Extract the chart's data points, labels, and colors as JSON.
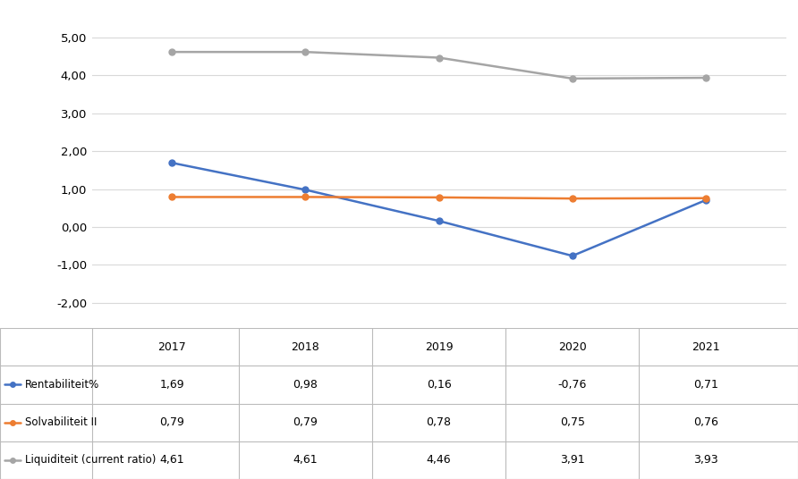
{
  "years": [
    2017,
    2018,
    2019,
    2020,
    2021
  ],
  "rentabiliteit": [
    1.69,
    0.98,
    0.16,
    -0.76,
    0.71
  ],
  "solvabiliteit": [
    0.79,
    0.79,
    0.78,
    0.75,
    0.76
  ],
  "liquiditeit": [
    4.61,
    4.61,
    4.46,
    3.91,
    3.93
  ],
  "color_rentabiliteit": "#4472C4",
  "color_solvabiliteit": "#ED7D31",
  "color_liquiditeit": "#A5A5A5",
  "ylim": [
    -2.6,
    5.6
  ],
  "yticks": [
    -2.0,
    -1.0,
    0.0,
    1.0,
    2.0,
    3.0,
    4.0,
    5.0
  ],
  "table_rows": [
    [
      "Rentabiliteit%",
      "1,69",
      "0,98",
      "0,16",
      "-0,76",
      "0,71"
    ],
    [
      "Solvabiliteit II",
      "0,79",
      "0,79",
      "0,78",
      "0,75",
      "0,76"
    ],
    [
      "Liquiditeit (current ratio)",
      "4,61",
      "4,61",
      "4,46",
      "3,91",
      "3,93"
    ]
  ],
  "background_color": "#FFFFFF",
  "marker_style": "o",
  "marker_size": 5,
  "line_width": 1.8
}
